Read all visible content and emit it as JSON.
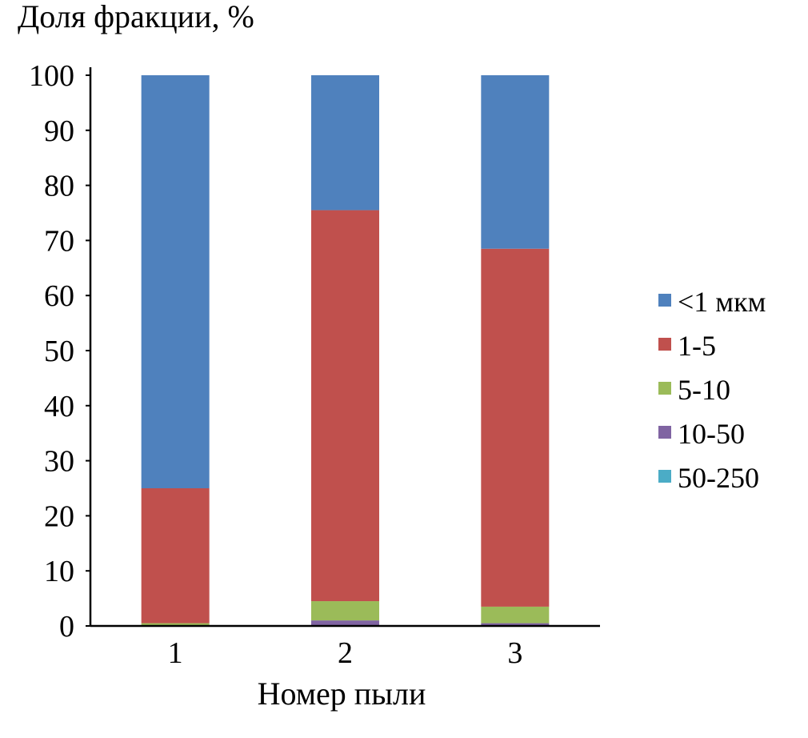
{
  "chart_data": {
    "type": "bar",
    "stacked": true,
    "title": "Доля фракции, %",
    "xlabel": "Номер пыли",
    "ylabel": "",
    "ylim": [
      0,
      100
    ],
    "y_ticks": [
      "0",
      "10",
      "20",
      "30",
      "40",
      "50",
      "60",
      "70",
      "80",
      "90",
      "100"
    ],
    "categories": [
      "1",
      "2",
      "3"
    ],
    "series": [
      {
        "name": "50-250",
        "color": "#4BACC6",
        "values": [
          0,
          0,
          0
        ]
      },
      {
        "name": "10-50",
        "color": "#8064A2",
        "values": [
          0,
          1,
          0.5
        ]
      },
      {
        "name": "5-10",
        "color": "#9BBB59",
        "values": [
          0.5,
          3.5,
          3
        ]
      },
      {
        "name": "1-5",
        "color": "#C0504D",
        "values": [
          24.5,
          71,
          65
        ]
      },
      {
        "name": "<1 мкм",
        "color": "#4F81BD",
        "values": [
          75,
          24.5,
          31.5
        ]
      }
    ],
    "legend_order": [
      "<1 мкм",
      "1-5",
      "5-10",
      "10-50",
      "50-250"
    ],
    "legend_position": "right",
    "grid": false
  }
}
